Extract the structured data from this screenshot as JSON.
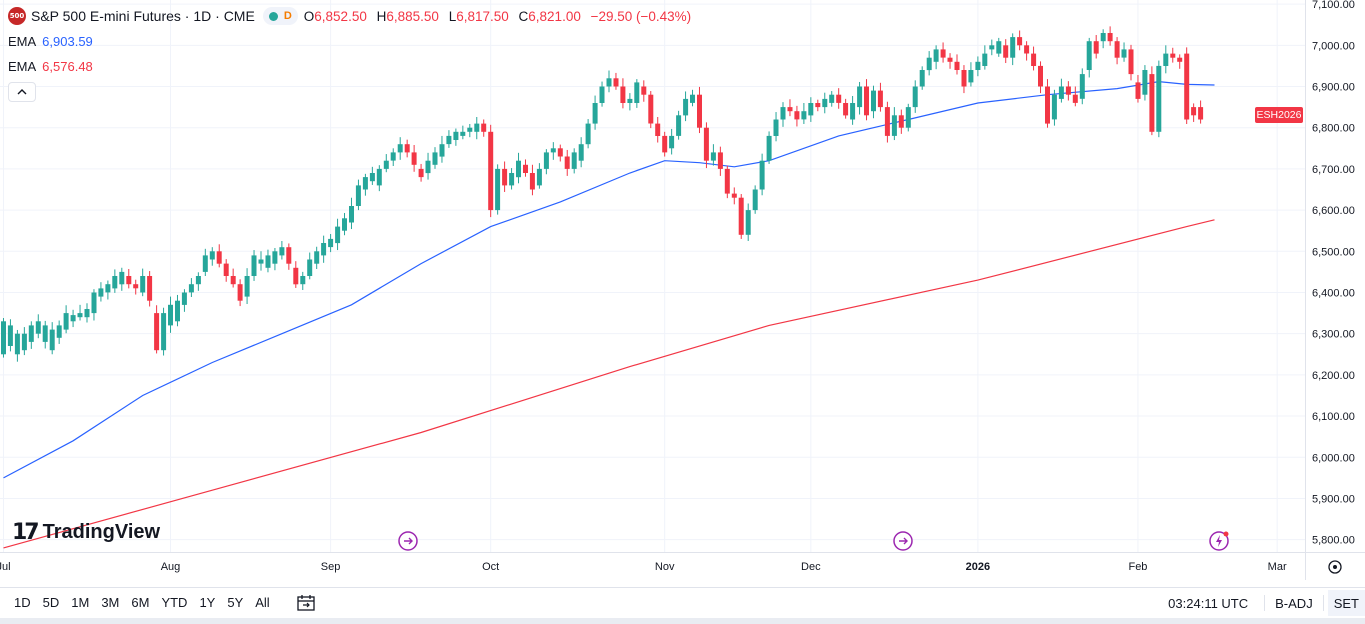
{
  "header": {
    "symbol_badge": "500",
    "title": "S&P 500 E-mini Futures · 1D · CME",
    "market_status_letter": "D",
    "ohlc": [
      {
        "label": "O",
        "value": "6,852.50"
      },
      {
        "label": "H",
        "value": "6,885.50"
      },
      {
        "label": "L",
        "value": "6,817.50"
      },
      {
        "label": "C",
        "value": "6,821.00"
      }
    ],
    "change": "−29.50 (−0.43%)"
  },
  "indicators": [
    {
      "label": "EMA",
      "value": "6,903.59",
      "color": "#2962ff"
    },
    {
      "label": "EMA",
      "value": "6,576.48",
      "color": "#f23645"
    }
  ],
  "price_tag": {
    "text": "ESH2026",
    "color": "#f23645"
  },
  "logo": {
    "text": "TradingView"
  },
  "bottom": {
    "ranges": [
      "1D",
      "5D",
      "1M",
      "3M",
      "6M",
      "YTD",
      "1Y",
      "5Y",
      "All"
    ],
    "clock": "03:24:11 UTC",
    "adjust": "B-ADJ",
    "session": "SET"
  },
  "colors": {
    "up": "#26a69a",
    "down": "#f23645",
    "ema_fast": "#2962ff",
    "ema_slow": "#f23645",
    "grid": "#f0f3fa"
  },
  "chart_data": {
    "type": "candlestick",
    "y_axis_labels": [
      "7,100.00",
      "7,000.00",
      "6,900.00",
      "6,800.00",
      "6,700.00",
      "6,600.00",
      "6,500.00",
      "6,400.00",
      "6,300.00",
      "6,200.00",
      "6,100.00",
      "6,000.00",
      "5,900.00",
      "5,800.00"
    ],
    "ylim": [
      5770,
      7110
    ],
    "x_axis_labels": [
      {
        "label": "Jul",
        "index": 0
      },
      {
        "label": "Aug",
        "index": 24
      },
      {
        "label": "Sep",
        "index": 47
      },
      {
        "label": "Oct",
        "index": 70
      },
      {
        "label": "Nov",
        "index": 95
      },
      {
        "label": "Dec",
        "index": 116
      },
      {
        "label": "2026",
        "index": 140
      },
      {
        "label": "Feb",
        "index": 163
      },
      {
        "label": "Mar",
        "index": 183
      }
    ],
    "xlim": [
      -0.5,
      187
    ],
    "candles": [
      [
        6250,
        6330
      ],
      [
        6270,
        6320
      ],
      [
        6250,
        6300
      ],
      [
        6260,
        6300
      ],
      [
        6280,
        6320
      ],
      [
        6300,
        6330
      ],
      [
        6280,
        6320
      ],
      [
        6260,
        6310
      ],
      [
        6290,
        6320
      ],
      [
        6310,
        6350
      ],
      [
        6330,
        6345
      ],
      [
        6340,
        6350
      ],
      [
        6340,
        6360
      ],
      [
        6350,
        6400
      ],
      [
        6390,
        6410
      ],
      [
        6400,
        6420
      ],
      [
        6410,
        6440
      ],
      [
        6420,
        6450
      ],
      [
        6440,
        6420
      ],
      [
        6420,
        6410
      ],
      [
        6400,
        6440
      ],
      [
        6440,
        6380
      ],
      [
        6350,
        6260
      ],
      [
        6260,
        6350
      ],
      [
        6320,
        6370
      ],
      [
        6330,
        6380
      ],
      [
        6370,
        6400
      ],
      [
        6400,
        6420
      ],
      [
        6420,
        6440
      ],
      [
        6450,
        6490
      ],
      [
        6480,
        6500
      ],
      [
        6500,
        6470
      ],
      [
        6470,
        6440
      ],
      [
        6440,
        6420
      ],
      [
        6420,
        6380
      ],
      [
        6390,
        6440
      ],
      [
        6440,
        6490
      ],
      [
        6470,
        6480
      ],
      [
        6460,
        6490
      ],
      [
        6470,
        6500
      ],
      [
        6490,
        6510
      ],
      [
        6510,
        6470
      ],
      [
        6460,
        6420
      ],
      [
        6420,
        6440
      ],
      [
        6440,
        6480
      ],
      [
        6470,
        6500
      ],
      [
        6490,
        6520
      ],
      [
        6510,
        6530
      ],
      [
        6520,
        6560
      ],
      [
        6550,
        6580
      ],
      [
        6570,
        6610
      ],
      [
        6610,
        6660
      ],
      [
        6650,
        6680
      ],
      [
        6670,
        6690
      ],
      [
        6660,
        6700
      ],
      [
        6700,
        6720
      ],
      [
        6720,
        6740
      ],
      [
        6740,
        6760
      ],
      [
        6760,
        6740
      ],
      [
        6740,
        6710
      ],
      [
        6700,
        6680
      ],
      [
        6690,
        6720
      ],
      [
        6710,
        6740
      ],
      [
        6730,
        6760
      ],
      [
        6760,
        6780
      ],
      [
        6770,
        6790
      ],
      [
        6780,
        6790
      ],
      [
        6790,
        6800
      ],
      [
        6790,
        6810
      ],
      [
        6810,
        6790
      ],
      [
        6790,
        6600
      ],
      [
        6600,
        6700
      ],
      [
        6700,
        6660
      ],
      [
        6660,
        6690
      ],
      [
        6680,
        6720
      ],
      [
        6710,
        6690
      ],
      [
        6690,
        6650
      ],
      [
        6660,
        6700
      ],
      [
        6700,
        6740
      ],
      [
        6740,
        6750
      ],
      [
        6750,
        6730
      ],
      [
        6730,
        6700
      ],
      [
        6700,
        6740
      ],
      [
        6720,
        6760
      ],
      [
        6760,
        6810
      ],
      [
        6810,
        6860
      ],
      [
        6860,
        6900
      ],
      [
        6900,
        6920
      ],
      [
        6920,
        6900
      ],
      [
        6900,
        6860
      ],
      [
        6860,
        6870
      ],
      [
        6860,
        6910
      ],
      [
        6900,
        6880
      ],
      [
        6880,
        6810
      ],
      [
        6810,
        6780
      ],
      [
        6780,
        6740
      ],
      [
        6750,
        6780
      ],
      [
        6780,
        6830
      ],
      [
        6830,
        6870
      ],
      [
        6860,
        6880
      ],
      [
        6880,
        6800
      ],
      [
        6800,
        6720
      ],
      [
        6720,
        6740
      ],
      [
        6740,
        6700
      ],
      [
        6700,
        6640
      ],
      [
        6640,
        6630
      ],
      [
        6630,
        6540
      ],
      [
        6540,
        6600
      ],
      [
        6600,
        6650
      ],
      [
        6650,
        6720
      ],
      [
        6720,
        6780
      ],
      [
        6780,
        6820
      ],
      [
        6820,
        6850
      ],
      [
        6850,
        6840
      ],
      [
        6840,
        6820
      ],
      [
        6820,
        6840
      ],
      [
        6830,
        6860
      ],
      [
        6860,
        6850
      ],
      [
        6850,
        6870
      ],
      [
        6860,
        6880
      ],
      [
        6880,
        6860
      ],
      [
        6860,
        6830
      ],
      [
        6820,
        6860
      ],
      [
        6850,
        6900
      ],
      [
        6900,
        6830
      ],
      [
        6840,
        6890
      ],
      [
        6890,
        6850
      ],
      [
        6850,
        6780
      ],
      [
        6780,
        6830
      ],
      [
        6830,
        6800
      ],
      [
        6800,
        6850
      ],
      [
        6850,
        6900
      ],
      [
        6900,
        6940
      ],
      [
        6940,
        6970
      ],
      [
        6960,
        6990
      ],
      [
        6990,
        6970
      ],
      [
        6970,
        6960
      ],
      [
        6960,
        6940
      ],
      [
        6940,
        6900
      ],
      [
        6910,
        6940
      ],
      [
        6940,
        6960
      ],
      [
        6950,
        6980
      ],
      [
        6990,
        7000
      ],
      [
        6980,
        7010
      ],
      [
        7000,
        6970
      ],
      [
        6970,
        7020
      ],
      [
        7020,
        7000
      ],
      [
        7000,
        6980
      ],
      [
        6980,
        6950
      ],
      [
        6950,
        6900
      ],
      [
        6900,
        6810
      ],
      [
        6820,
        6880
      ],
      [
        6870,
        6900
      ],
      [
        6900,
        6880
      ],
      [
        6880,
        6860
      ],
      [
        6870,
        6930
      ],
      [
        6940,
        7010
      ],
      [
        7010,
        6980
      ],
      [
        7010,
        7030
      ],
      [
        7030,
        7010
      ],
      [
        7010,
        6970
      ],
      [
        6970,
        6990
      ],
      [
        6990,
        6930
      ],
      [
        6910,
        6870
      ],
      [
        6880,
        6940
      ],
      [
        6930,
        6790
      ],
      [
        6790,
        6950
      ],
      [
        6950,
        6980
      ],
      [
        6980,
        6970
      ],
      [
        6970,
        6960
      ],
      [
        6980,
        6820
      ],
      [
        6850,
        6830
      ],
      [
        6850,
        6820
      ]
    ],
    "ema_fast_points": [
      [
        0,
        5950
      ],
      [
        10,
        6040
      ],
      [
        20,
        6150
      ],
      [
        30,
        6230
      ],
      [
        40,
        6300
      ],
      [
        50,
        6370
      ],
      [
        60,
        6470
      ],
      [
        70,
        6560
      ],
      [
        80,
        6620
      ],
      [
        90,
        6690
      ],
      [
        95,
        6720
      ],
      [
        100,
        6715
      ],
      [
        105,
        6705
      ],
      [
        110,
        6720
      ],
      [
        120,
        6780
      ],
      [
        130,
        6820
      ],
      [
        140,
        6860
      ],
      [
        150,
        6880
      ],
      [
        160,
        6895
      ],
      [
        166,
        6912
      ],
      [
        170,
        6905
      ],
      [
        174,
        6903.59
      ]
    ],
    "ema_slow_points": [
      [
        0,
        5780
      ],
      [
        30,
        5920
      ],
      [
        60,
        6060
      ],
      [
        90,
        6220
      ],
      [
        110,
        6320
      ],
      [
        140,
        6430
      ],
      [
        170,
        6560
      ],
      [
        174,
        6576.48
      ]
    ]
  }
}
